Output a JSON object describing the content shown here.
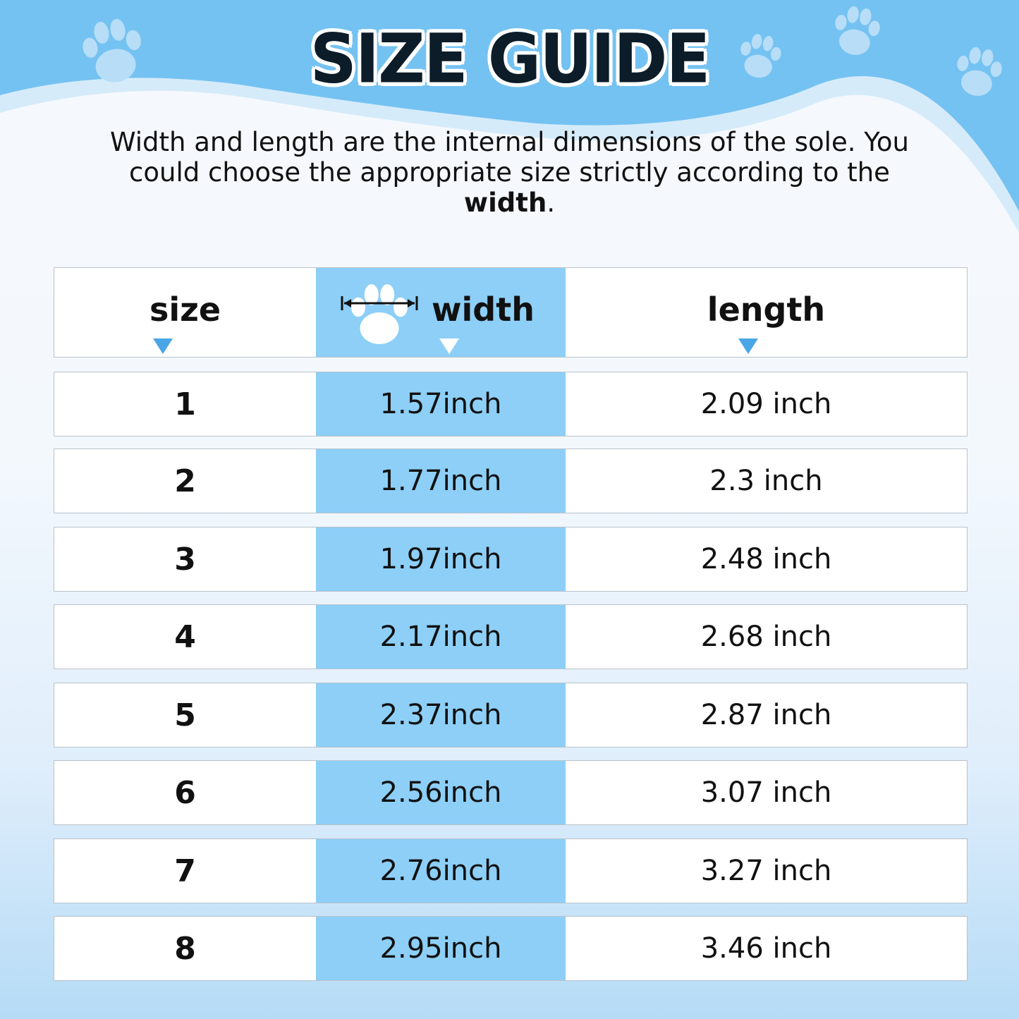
{
  "title": "SIZE GUIDE",
  "intro": {
    "text_before": "Width and length are the internal dimensions of the sole. You could choose the appropriate size strictly according to the ",
    "bold": "width",
    "text_after": "."
  },
  "colors": {
    "sky": "#74c2f2",
    "width_column": "#8dcff7",
    "arrow": "#4aa6e6",
    "text": "#0c1c28"
  },
  "table": {
    "headers": {
      "size": "size",
      "width": "width",
      "length": "length"
    },
    "header_icon": "paw-with-width-arrow-icon",
    "rows": [
      {
        "size": "1",
        "width": "1.57inch",
        "length": "2.09 inch"
      },
      {
        "size": "2",
        "width": "1.77inch",
        "length": "2.3 inch"
      },
      {
        "size": "3",
        "width": "1.97inch",
        "length": "2.48 inch"
      },
      {
        "size": "4",
        "width": "2.17inch",
        "length": "2.68 inch"
      },
      {
        "size": "5",
        "width": "2.37inch",
        "length": "2.87 inch"
      },
      {
        "size": "6",
        "width": "2.56inch",
        "length": "3.07 inch"
      },
      {
        "size": "7",
        "width": "2.76inch",
        "length": "3.27 inch"
      },
      {
        "size": "8",
        "width": "2.95inch",
        "length": "3.46 inch"
      }
    ]
  }
}
